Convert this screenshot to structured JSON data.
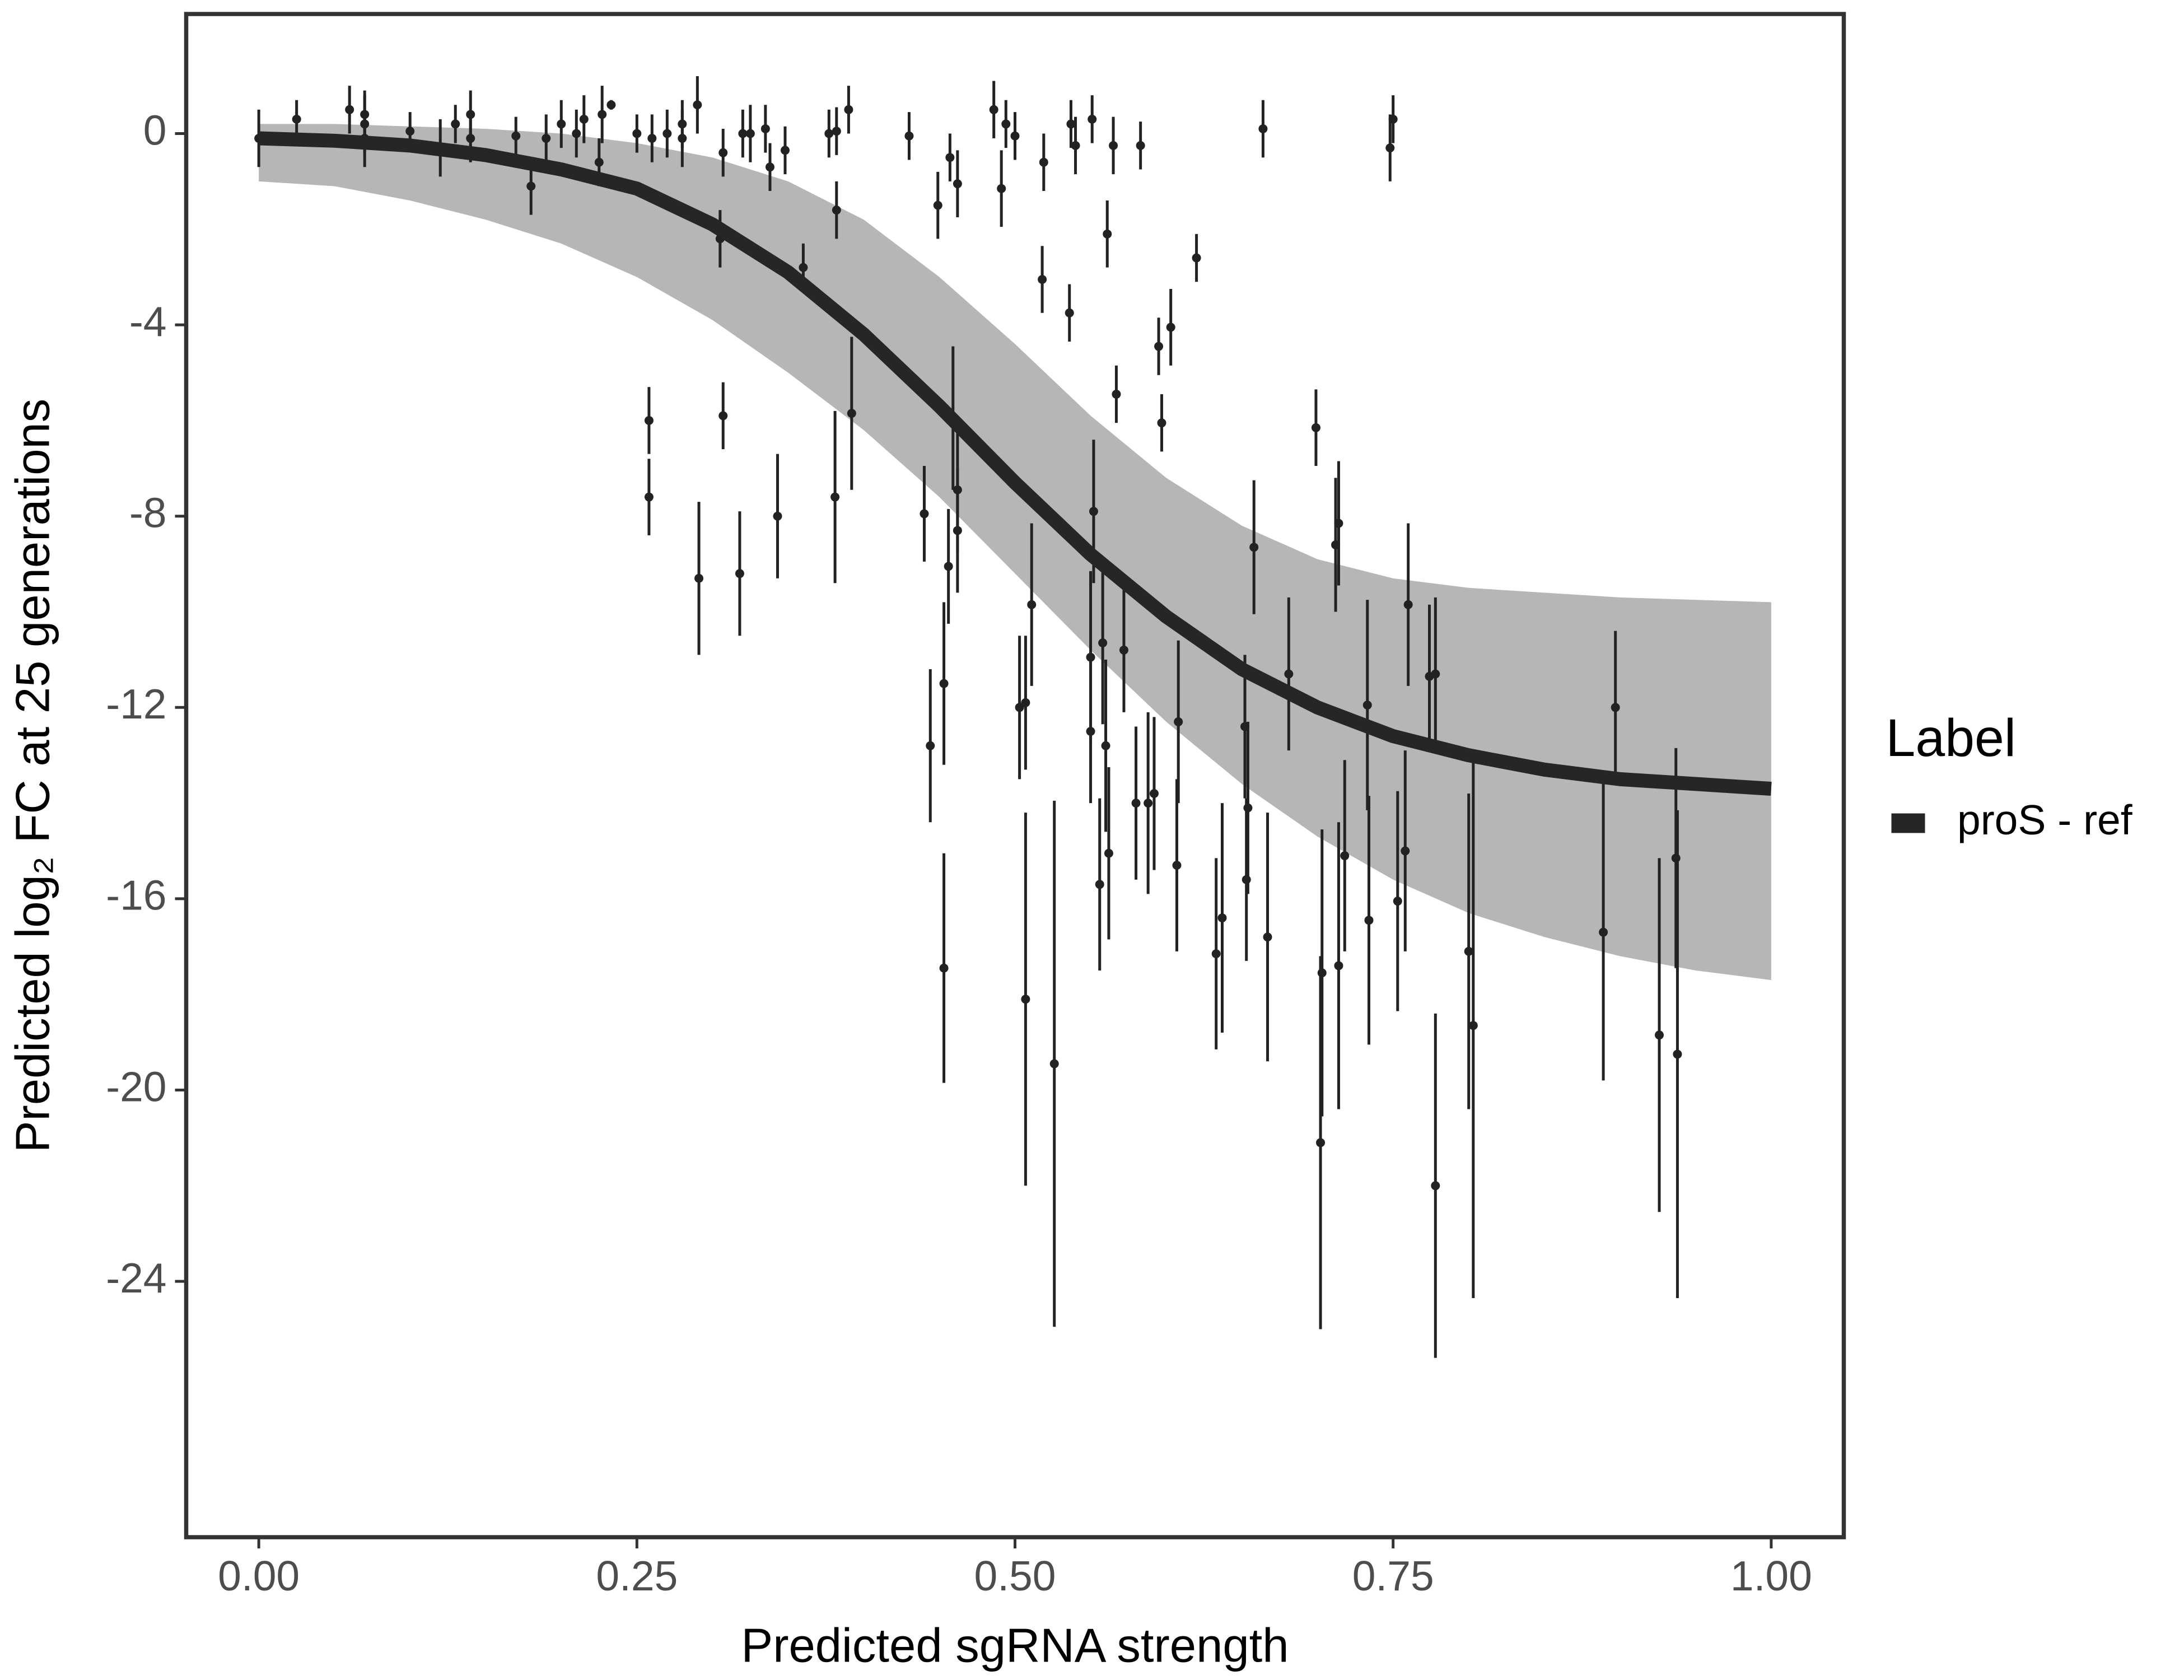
{
  "chart_data": {
    "type": "line",
    "x_label": "Predicted sgRNA strength",
    "y_label": "Predicted  log₂ FC at 25 generations",
    "legend_title": "Label",
    "legend_position": "right",
    "xlim": [
      -0.048,
      1.048
    ],
    "ylim": [
      -29.35,
      2.5
    ],
    "xticks": [
      {
        "value": 0,
        "label": "0.00"
      },
      {
        "value": 0.25,
        "label": "0.25"
      },
      {
        "value": 0.5,
        "label": "0.50"
      },
      {
        "value": 0.75,
        "label": "0.75"
      },
      {
        "value": 1,
        "label": "1.00"
      }
    ],
    "yticks": [
      0,
      -4,
      -8,
      -12,
      -16,
      -20,
      -24
    ],
    "series": [
      {
        "name": "proS - ref",
        "color": "#262626",
        "x": [
          0,
          0.05,
          0.1,
          0.15,
          0.2,
          0.25,
          0.3,
          0.35,
          0.4,
          0.45,
          0.5,
          0.55,
          0.6,
          0.65,
          0.7,
          0.75,
          0.8,
          0.85,
          0.9,
          0.95,
          1
        ],
        "values": [
          -0.1,
          -0.15,
          -0.25,
          -0.45,
          -0.75,
          -1.15,
          -1.9,
          -2.9,
          -4.2,
          -5.7,
          -7.3,
          -8.8,
          -10.1,
          -11.2,
          -12.0,
          -12.6,
          -13.0,
          -13.3,
          -13.5,
          -13.6,
          -13.7
        ]
      }
    ],
    "band": {
      "color": "#a9a9a9",
      "x": [
        0,
        0.05,
        0.1,
        0.15,
        0.2,
        0.25,
        0.3,
        0.35,
        0.4,
        0.45,
        0.5,
        0.55,
        0.6,
        0.65,
        0.7,
        0.75,
        0.8,
        0.85,
        0.9,
        0.95,
        1
      ],
      "upper": [
        0.2,
        0.2,
        0.15,
        0.1,
        0.0,
        -0.2,
        -0.5,
        -1.0,
        -1.8,
        -3.0,
        -4.4,
        -5.9,
        -7.2,
        -8.2,
        -8.9,
        -9.3,
        -9.5,
        -9.6,
        -9.7,
        -9.75,
        -9.8
      ],
      "lower": [
        -1.0,
        -1.1,
        -1.4,
        -1.8,
        -2.3,
        -3.0,
        -3.9,
        -5.0,
        -6.2,
        -7.6,
        -9.2,
        -10.8,
        -12.3,
        -13.6,
        -14.7,
        -15.6,
        -16.3,
        -16.8,
        -17.2,
        -17.5,
        -17.7
      ]
    },
    "points": {
      "color": "#222222",
      "x": [
        0.0,
        0.025,
        0.06,
        0.07,
        0.07,
        0.07,
        0.1,
        0.12,
        0.13,
        0.14,
        0.14,
        0.17,
        0.18,
        0.19,
        0.2,
        0.21,
        0.215,
        0.225,
        0.227,
        0.233,
        0.25,
        0.26,
        0.27,
        0.28,
        0.28,
        0.29,
        0.305,
        0.307,
        0.32,
        0.325,
        0.335,
        0.338,
        0.348,
        0.36,
        0.377,
        0.382,
        0.382,
        0.39,
        0.43,
        0.449,
        0.457,
        0.462,
        0.486,
        0.491,
        0.494,
        0.5,
        0.518,
        0.519,
        0.536,
        0.537,
        0.54,
        0.551,
        0.561,
        0.565,
        0.567,
        0.583,
        0.595,
        0.597,
        0.603,
        0.62,
        0.664,
        0.748,
        0.75,
        0.258,
        0.258,
        0.307,
        0.291,
        0.318,
        0.343,
        0.381,
        0.392,
        0.44,
        0.444,
        0.453,
        0.453,
        0.456,
        0.459,
        0.462,
        0.462,
        0.503,
        0.507,
        0.507,
        0.511,
        0.526,
        0.552,
        0.55,
        0.55,
        0.556,
        0.558,
        0.56,
        0.562,
        0.572,
        0.58,
        0.588,
        0.592,
        0.608,
        0.607,
        0.633,
        0.637,
        0.652,
        0.653,
        0.654,
        0.658,
        0.667,
        0.681,
        0.699,
        0.703,
        0.702,
        0.712,
        0.714,
        0.714,
        0.718,
        0.733,
        0.734,
        0.76,
        0.758,
        0.753,
        0.774,
        0.778,
        0.778,
        0.8,
        0.803,
        0.889,
        0.897,
        0.926,
        0.937,
        0.938
      ],
      "y": [
        -0.1,
        0.3,
        0.5,
        0.4,
        0.2,
        -0.1,
        0.05,
        -0.3,
        0.2,
        -0.1,
        0.4,
        -0.05,
        -1.1,
        -0.1,
        0.2,
        0,
        0.3,
        -0.6,
        0.4,
        0.6,
        0,
        -0.1,
        0,
        0.2,
        -0.1,
        0.6,
        -2.2,
        -0.4,
        0,
        0.0,
        0.1,
        -0.7,
        -0.35,
        -2.8,
        0,
        -1.6,
        0.05,
        0.5,
        -0.05,
        -1.5,
        -0.5,
        -1.05,
        0.5,
        -1.15,
        0.2,
        -0.05,
        -3.05,
        -0.6,
        -3.75,
        0.2,
        -0.25,
        0.3,
        -2.1,
        -0.25,
        -5.45,
        -0.25,
        -4.45,
        -6.05,
        -4.05,
        -2.6,
        0.1,
        -0.3,
        0.3,
        -6.0,
        -7.6,
        -5.9,
        -9.3,
        -9.2,
        -8.0,
        -7.6,
        -5.85,
        -7.95,
        -12.8,
        -11.5,
        -17.45,
        -9.05,
        -5.95,
        -7.45,
        -8.3,
        -12.0,
        -18.1,
        -11.9,
        -9.85,
        -19.45,
        -7.9,
        -10.95,
        -12.5,
        -15.7,
        -10.65,
        -12.8,
        -15.05,
        -10.8,
        -14.0,
        -14.0,
        -13.8,
        -12.3,
        -15.3,
        -17.15,
        -16.4,
        -12.4,
        -15.6,
        -14.1,
        -8.65,
        -16.8,
        -11.3,
        -6.15,
        -17.55,
        -21.1,
        -8.6,
        -8.15,
        -17.4,
        -15.1,
        -11.95,
        -16.45,
        -9.85,
        -15.0,
        -16.05,
        -11.35,
        -11.3,
        -22.0,
        -17.1,
        -18.65,
        -16.7,
        -12.0,
        -18.85,
        -15.15,
        -19.25
      ],
      "error": [
        0.6,
        0.4,
        0.5,
        0.5,
        0.6,
        0.6,
        0.4,
        0.6,
        0.4,
        0.5,
        0.5,
        0.4,
        0.6,
        0.5,
        0.5,
        0.5,
        0.5,
        0.5,
        0.6,
        0.1,
        0.4,
        0.5,
        0.5,
        0.5,
        0.6,
        0.6,
        0.6,
        0.5,
        0.5,
        0.6,
        0.5,
        0.5,
        0.5,
        0.5,
        0.5,
        0.6,
        0.5,
        0.5,
        0.5,
        0.7,
        0.5,
        0.7,
        0.6,
        0.8,
        0.5,
        0.5,
        0.7,
        0.6,
        0.6,
        0.5,
        0.6,
        0.5,
        0.7,
        0.6,
        0.6,
        0.5,
        0.6,
        0.6,
        0.8,
        0.5,
        0.6,
        0.7,
        0.5,
        0.7,
        0.8,
        0.7,
        1.6,
        1.3,
        1.3,
        1.8,
        1.6,
        1.0,
        1.6,
        1.7,
        2.4,
        1.2,
        1.5,
        1.3,
        1.3,
        1.5,
        3.9,
        1.4,
        1.7,
        5.5,
        1.5,
        1.8,
        1.5,
        1.8,
        1.7,
        1.8,
        1.8,
        1.3,
        1.6,
        1.9,
        1.6,
        1.7,
        1.8,
        2.0,
        2.4,
        1.5,
        1.7,
        1.8,
        1.4,
        2.6,
        1.6,
        0.8,
        3.0,
        3.9,
        1.4,
        1.3,
        3.0,
        2.0,
        2.2,
        2.6,
        1.7,
        2.1,
        2.3,
        1.5,
        1.6,
        3.6,
        3.3,
        5.7,
        3.1,
        1.6,
        3.7,
        2.3,
        5.1
      ]
    }
  }
}
